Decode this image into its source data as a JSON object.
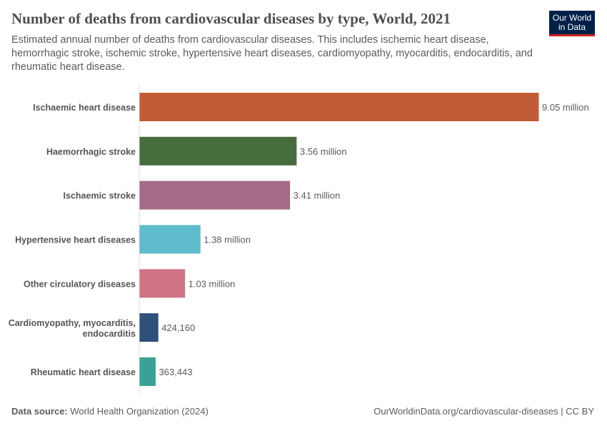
{
  "title": "Number of deaths from cardiovascular diseases by type, World, 2021",
  "subtitle": "Estimated annual number of deaths from cardiovascular diseases. This includes ischemic heart disease, hemorrhagic stroke, ischemic stroke, hypertensive heart diseases, cardiomyopathy, myocarditis, endocarditis, and rheumatic heart disease.",
  "logo": "Our World in Data",
  "footer": {
    "source_label": "Data source:",
    "source": "World Health Organization (2024)",
    "url": "OurWorldinData.org/cardiovascular-diseases | CC BY"
  },
  "chart_data": {
    "type": "bar",
    "orientation": "horizontal",
    "categories": [
      "Ischaemic heart disease",
      "Haemorrhagic stroke",
      "Ischaemic stroke",
      "Hypertensive heart diseases",
      "Other circulatory diseases",
      "Cardiomyopathy, myocarditis, endocarditis",
      "Rheumatic heart disease"
    ],
    "values": [
      9050000,
      3560000,
      3410000,
      1380000,
      1030000,
      424160,
      363443
    ],
    "labels": [
      "9.05 million",
      "3.56 million",
      "3.41 million",
      "1.38 million",
      "1.03 million",
      "424,160",
      "363,443"
    ],
    "colors": [
      "#C15C37",
      "#476C3E",
      "#A36B86",
      "#5EBCCC",
      "#D07485",
      "#2E5079",
      "#39A196"
    ],
    "xlim": [
      0,
      9050000
    ],
    "grid": false,
    "legend": "none"
  }
}
